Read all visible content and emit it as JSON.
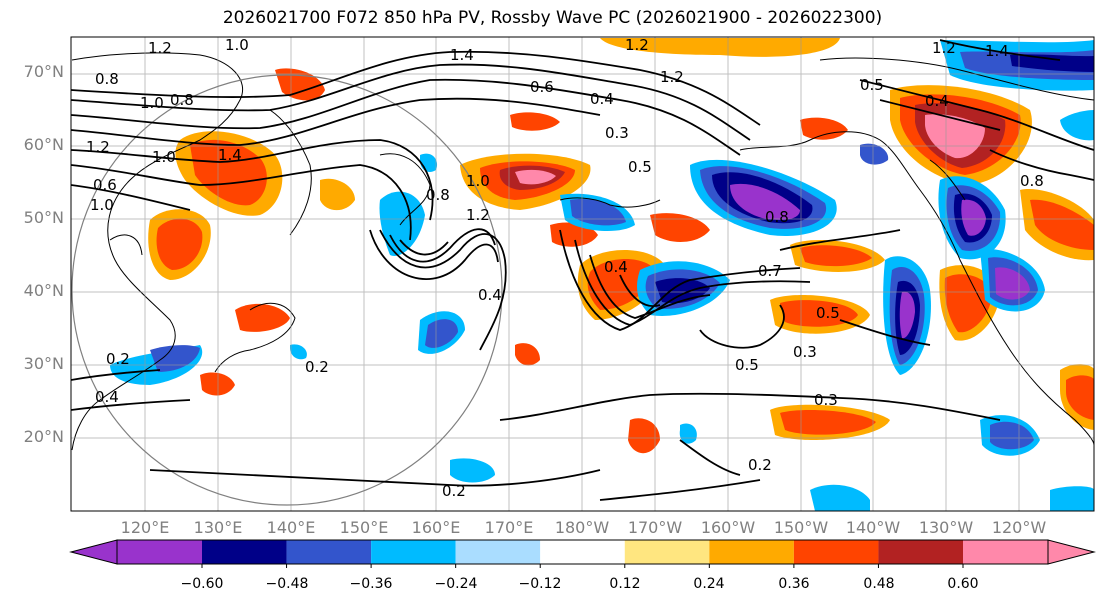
{
  "title": "2026021700 F072 850 hPa PV, Rossby Wave PC (2026021900 - 2026022300)",
  "lat_labels": [
    "70°N",
    "60°N",
    "50°N",
    "40°N",
    "30°N",
    "20°N"
  ],
  "lon_labels": [
    "120°E",
    "130°E",
    "140°E",
    "150°E",
    "160°E",
    "170°E",
    "180°W",
    "170°W",
    "160°W",
    "150°W",
    "140°W",
    "130°W",
    "120°W"
  ],
  "colorbar": {
    "colors": [
      "#9933cc",
      "#000088",
      "#3355cc",
      "#00bbff",
      "#aaddff",
      "#ffffff",
      "#ffe680",
      "#ffaa00",
      "#ff4400",
      "#b22222",
      "#ff88aa"
    ],
    "ticks": [
      "−0.60",
      "−0.48",
      "−0.36",
      "−0.24",
      "−0.12",
      "0.12",
      "0.24",
      "0.36",
      "0.48",
      "0.60"
    ]
  },
  "contour_labels": [
    "1.2",
    "1.0",
    "1.4",
    "1.2",
    "1.2",
    "1.4",
    "0.8",
    "1.0",
    "0.8",
    "0.6",
    "0.4",
    "1.2",
    "0.5",
    "0.4",
    "1.2",
    "1.0",
    "1.4",
    "0.3",
    "0.5",
    "0.8",
    "1.0",
    "1.2",
    "0.8",
    "0.6",
    "1.0",
    "0.4",
    "0.8",
    "0.7",
    "0.4",
    "0.5",
    "0.3",
    "0.5",
    "0.3",
    "0.2",
    "0.4",
    "0.2",
    "0.2",
    "0.2"
  ]
}
